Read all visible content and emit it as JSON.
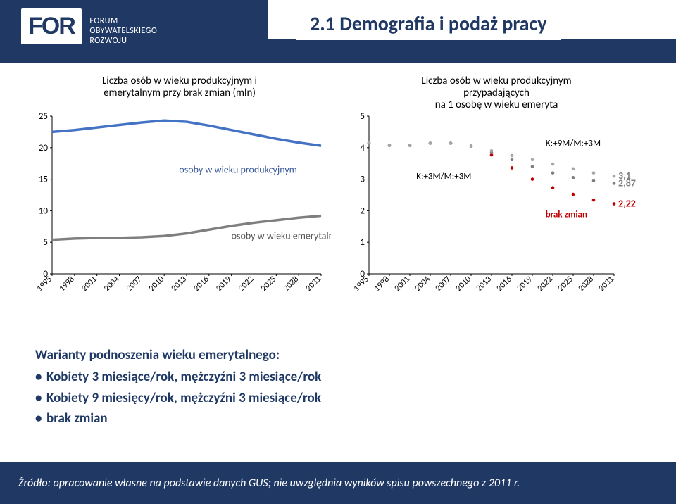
{
  "header": {
    "logo_main": "FOR",
    "logo_sub1": "FORUM",
    "logo_sub2": "OBYWATELSKIEGO",
    "logo_sub3": "ROZWOJU",
    "title": "2.1 Demografia i podaż pracy"
  },
  "chart_left": {
    "title": "Liczba osób w wieku produkcyjnym i\nemerytalnym przy brak zmian (mln)",
    "ylim": [
      0,
      25
    ],
    "ytick_step": 5,
    "x_years": [
      1995,
      1998,
      2001,
      2004,
      2007,
      2010,
      2013,
      2016,
      2019,
      2022,
      2025,
      2028,
      2031
    ],
    "series": [
      {
        "name": "osoby w wieku produkcyjnym",
        "color": "#4472c4",
        "width": 3.5,
        "y": [
          22.5,
          22.8,
          23.2,
          23.6,
          24.0,
          24.3,
          24.1,
          23.5,
          22.8,
          22.1,
          21.4,
          20.8,
          20.3
        ],
        "label_x": 2012,
        "label_y": 16
      },
      {
        "name": "osoby w wieku emerytalnym",
        "color": "#7f7f7f",
        "width": 3.5,
        "y": [
          5.4,
          5.6,
          5.7,
          5.7,
          5.8,
          6.0,
          6.4,
          7.0,
          7.6,
          8.1,
          8.5,
          8.9,
          9.2
        ],
        "label_x": 2019,
        "label_y": 5.5
      }
    ],
    "title_fontsize": 15,
    "axis_fontsize": 13,
    "bg": "#ffffff"
  },
  "chart_right": {
    "title": "Liczba osób w wieku produkcyjnym\nprzypadających\nna 1 osobę w wieku emeryta",
    "ylim": [
      0,
      5
    ],
    "ytick_step": 1,
    "x_years": [
      1995,
      1998,
      2001,
      2004,
      2007,
      2010,
      2013,
      2016,
      2019,
      2022,
      2025,
      2028,
      2031
    ],
    "series": [
      {
        "name": "brak zmian",
        "color": "#c00000",
        "dash": true,
        "width": 2.5,
        "y": [
          4.15,
          4.07,
          4.07,
          4.14,
          4.14,
          4.05,
          3.77,
          3.36,
          3.0,
          2.73,
          2.52,
          2.34,
          2.22
        ],
        "end_label": "2,22",
        "end_color": "#c00000",
        "mid_label": "brak zmian",
        "mid_x": 2024,
        "mid_y": 1.8
      },
      {
        "name": "K:+3M/M:+3M",
        "color": "#7f7f7f",
        "dash": true,
        "width": 2.5,
        "y": [
          4.15,
          4.07,
          4.07,
          4.14,
          4.14,
          4.05,
          3.85,
          3.62,
          3.4,
          3.2,
          3.05,
          2.95,
          2.87
        ],
        "end_label": "2,87",
        "end_color": "#7f7f7f",
        "mid_label": "K:+3M/M:+3M",
        "mid_x": 2006,
        "mid_y": 3.0
      },
      {
        "name": "K:+9M/M:+3M",
        "color": "#a6a6a6",
        "dash": true,
        "width": 2.5,
        "y": [
          4.15,
          4.07,
          4.07,
          4.14,
          4.14,
          4.05,
          3.9,
          3.75,
          3.62,
          3.48,
          3.33,
          3.2,
          3.1
        ],
        "end_label": "3,1",
        "end_color": "#7f7f7f",
        "mid_label": "K:+9M/M:+3M",
        "mid_x": 2025,
        "mid_y": 4.05
      }
    ],
    "title_fontsize": 15,
    "axis_fontsize": 13,
    "bg": "#ffffff"
  },
  "variants": {
    "heading": "Warianty podnoszenia wieku emerytalnego:",
    "items": [
      "Kobiety 3 miesiące/rok, mężczyźni 3 miesiące/rok",
      "Kobiety 9 miesięcy/rok, mężczyźni 3 miesiące/rok",
      "brak zmian"
    ]
  },
  "footer": "Źródło: opracowanie własne na podstawie danych GUS; nie uwzględnia wyników spisu powszechnego z 2011 r."
}
